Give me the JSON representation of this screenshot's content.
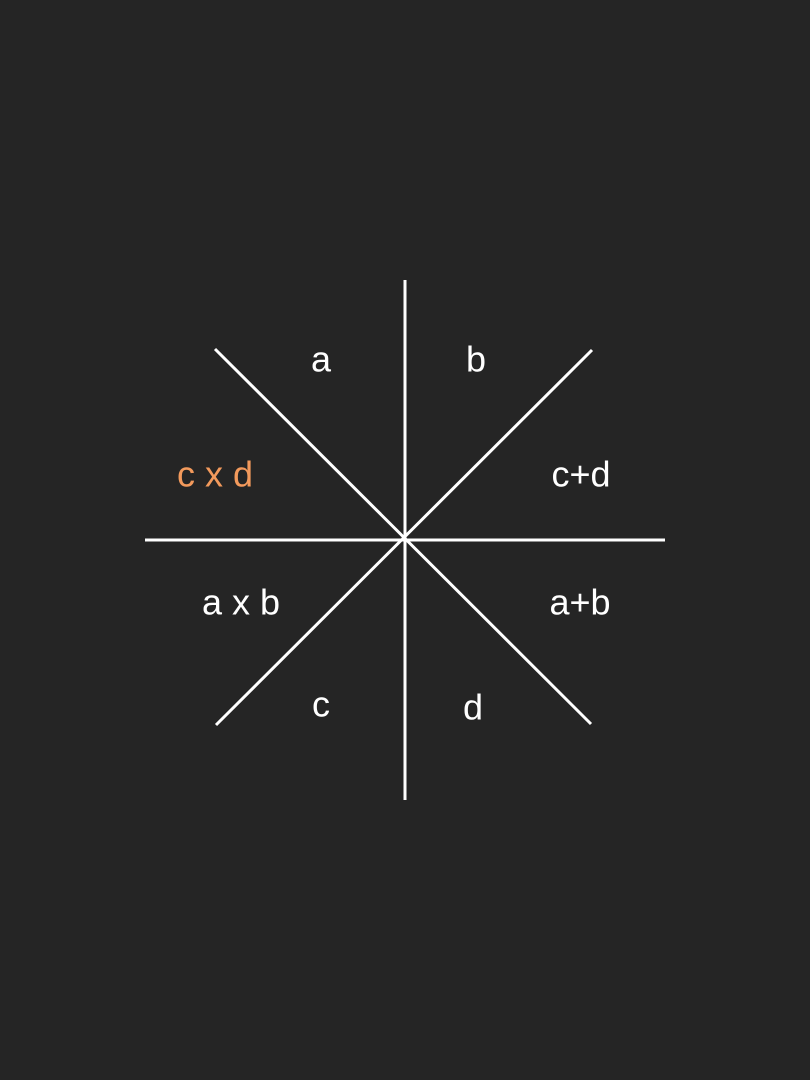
{
  "colors": {
    "background": "#252525",
    "line": "#ffffff",
    "text": "#ffffff",
    "highlight": "#f39a5c"
  },
  "diagram": {
    "lines": [
      {
        "name": "vertical-line"
      },
      {
        "name": "horizontal-line"
      },
      {
        "name": "diagonal-line-nw-se"
      },
      {
        "name": "diagonal-line-ne-sw"
      }
    ],
    "labels": {
      "top_left": "a",
      "top_right": "b",
      "right_upper": "c+d",
      "right_lower": "a+b",
      "bottom_right": "d",
      "bottom_left": "c",
      "left_lower": "a x b",
      "left_upper": "c x d"
    },
    "highlighted_label": "left_upper"
  }
}
